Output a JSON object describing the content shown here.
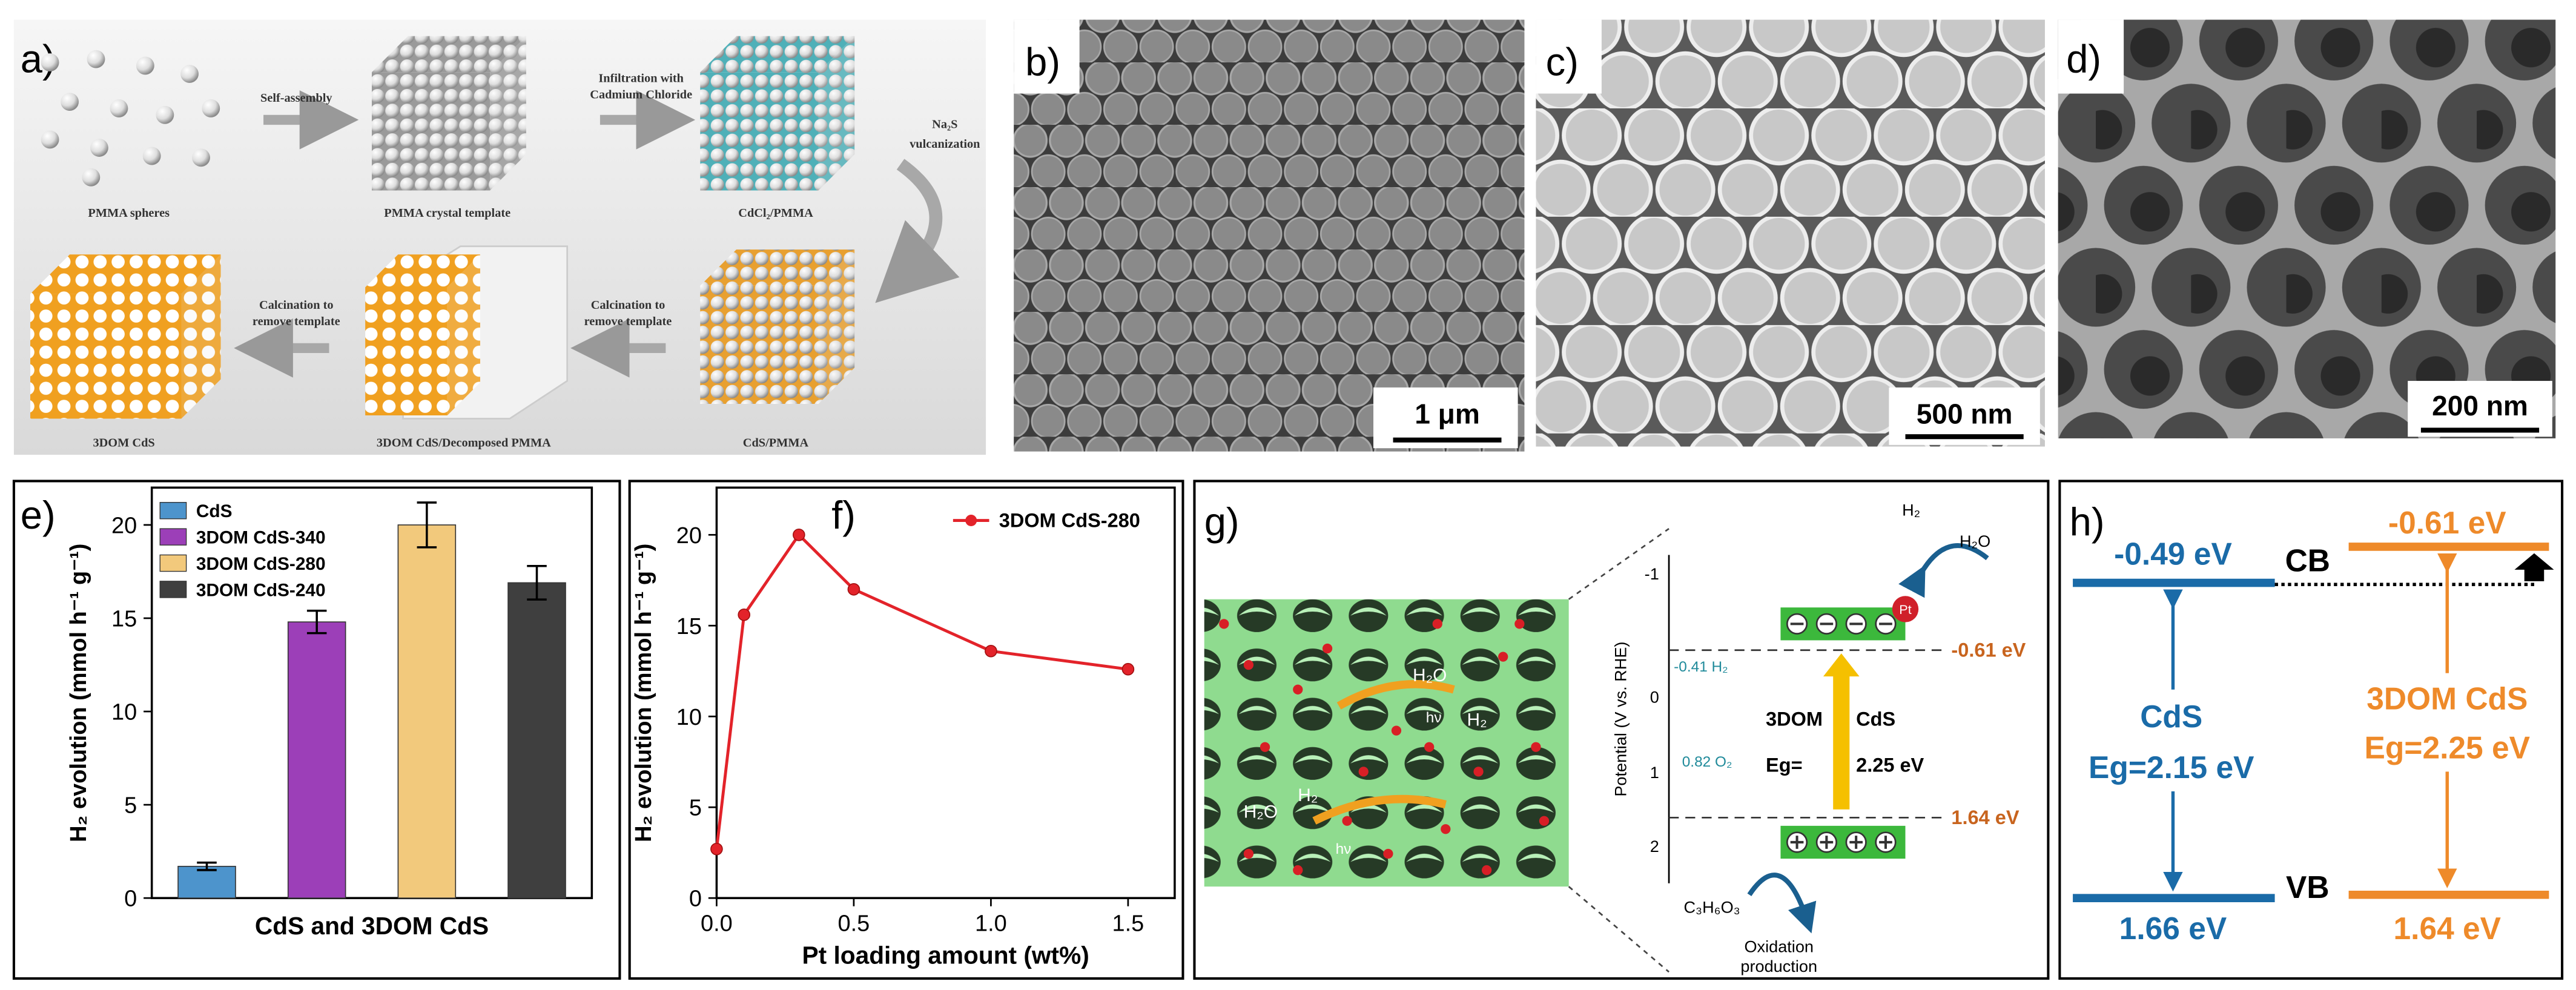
{
  "panel_a": {
    "label": "a)",
    "steps": [
      [
        "Self-assembly"
      ],
      [
        "Infiltration with",
        "Cadmium Chloride"
      ],
      [
        "Na₂S",
        "vulcanization"
      ],
      [
        "Calcination to",
        "remove template"
      ],
      [
        "Calcination to",
        "remove template"
      ]
    ],
    "stages": [
      "PMMA spheres",
      "PMMA crystal template",
      "CdCl₂/PMMA",
      "CdS/PMMA",
      "3DOM CdS/Decomposed PMMA",
      "3DOM CdS"
    ]
  },
  "panel_b": {
    "label": "b)",
    "scale_bar": "1 μm"
  },
  "panel_c": {
    "label": "c)",
    "scale_bar": "500 nm"
  },
  "panel_d": {
    "label": "d)",
    "scale_bar": "200 nm"
  },
  "chart_data": [
    {
      "type": "bar",
      "label": "e)",
      "xlabel": "CdS and 3DOM CdS",
      "ylabel": "H₂ evolution (mmol h⁻¹ g⁻¹)",
      "categories": [
        null
      ],
      "series": [
        {
          "name": "CdS",
          "color": "#4d94cc",
          "values": [
            1.7
          ],
          "errors": [
            0.2
          ]
        },
        {
          "name": "3DOM CdS-340",
          "color": "#9c3fb8",
          "values": [
            14.8
          ],
          "errors": [
            0.6
          ]
        },
        {
          "name": "3DOM CdS-280",
          "color": "#f2c97c",
          "values": [
            20.0
          ],
          "errors": [
            1.2
          ]
        },
        {
          "name": "3DOM CdS-240",
          "color": "#3f3f3f",
          "values": [
            16.9
          ],
          "errors": [
            0.9
          ]
        }
      ],
      "ylim": [
        0,
        22
      ],
      "yticks": [
        0,
        5,
        10,
        15,
        20
      ],
      "legend": "upper left"
    },
    {
      "type": "line",
      "label": "f)",
      "xlabel": "Pt loading amount (wt%)",
      "ylabel": "H₂ evolution (mmol h⁻¹ g⁻¹)",
      "x": [
        0,
        0.1,
        0.3,
        0.5,
        1.0,
        1.5
      ],
      "series": [
        {
          "name": "3DOM CdS-280",
          "color": "#e3232a",
          "values": [
            2.7,
            15.6,
            20.0,
            17.0,
            13.6,
            12.6
          ]
        }
      ],
      "xlim": [
        0,
        1.67
      ],
      "xticks": [
        {
          "value": 0,
          "label": "0.0"
        },
        {
          "value": 0.5,
          "label": "0.5"
        },
        {
          "value": 1.0,
          "label": "1.0"
        },
        {
          "value": 1.5,
          "label": "1.5"
        }
      ],
      "ylim": [
        0,
        22.6
      ],
      "yticks": [
        0,
        5,
        10,
        15,
        20
      ],
      "legend": "upper right"
    }
  ],
  "panel_g": {
    "label": "g)",
    "image_labels": [
      "H₂O",
      "hν",
      "H₂",
      "H₂O",
      "H₂",
      "hν"
    ],
    "axis_label": "Potential (V vs. RHE)",
    "tick_labels": [
      "-1",
      "0",
      "1",
      "2"
    ],
    "h2_level": "-0.41 H₂",
    "o2_level": "0.82 O₂",
    "products": [
      "H₂",
      "H₂O"
    ],
    "metal": "Pt",
    "material": [
      "3DOM",
      "CdS"
    ],
    "gap": [
      "Eg=",
      "2.25 eV"
    ],
    "cb": "-0.61 eV",
    "vb": "1.64 eV",
    "donor": "C₃H₆O₃",
    "oxidation": [
      "Oxidation",
      "production"
    ]
  },
  "panel_h": {
    "label": "h)",
    "cds_cb": "-0.49 eV",
    "cds_vb": "1.66 eV",
    "cds_name": "CdS",
    "cds_gap": "Eg=2.15 eV",
    "cb": "CB",
    "vb": "VB",
    "dom_cb": "-0.61 eV",
    "dom_vb": "1.64 eV",
    "dom_name": "3DOM CdS",
    "dom_gap": "Eg=2.25 eV"
  }
}
